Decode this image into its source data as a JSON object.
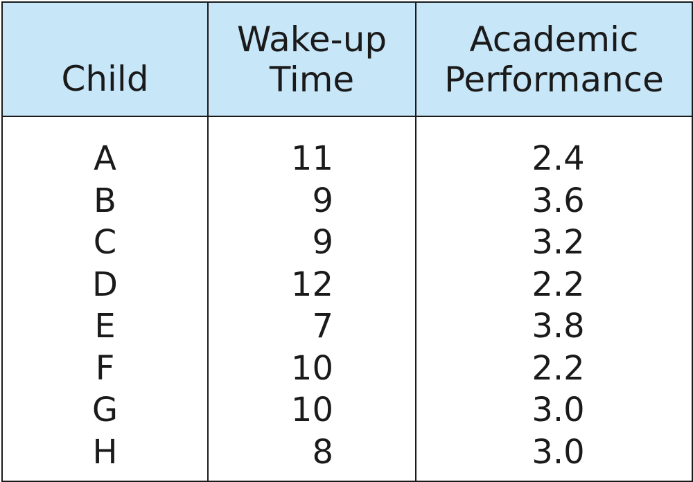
{
  "chart_data": {
    "type": "table",
    "columns": [
      "Child",
      "Wake-up Time",
      "Academic Performance"
    ],
    "header_lines": {
      "child": [
        "Child"
      ],
      "wake": [
        "Wake-up",
        "Time"
      ],
      "perf": [
        "Academic",
        "Performance"
      ]
    },
    "rows": [
      {
        "child": "A",
        "wake": "11",
        "perf": "2.4"
      },
      {
        "child": "B",
        "wake": "9",
        "perf": "3.6"
      },
      {
        "child": "C",
        "wake": "9",
        "perf": "3.2"
      },
      {
        "child": "D",
        "wake": "12",
        "perf": "2.2"
      },
      {
        "child": "E",
        "wake": "7",
        "perf": "3.8"
      },
      {
        "child": "F",
        "wake": "10",
        "perf": "2.2"
      },
      {
        "child": "G",
        "wake": "10",
        "perf": "3.0"
      },
      {
        "child": "H",
        "wake": "8",
        "perf": "3.0"
      }
    ],
    "header_color": "#c7e6f8",
    "border_color": "#1a1a1a"
  }
}
